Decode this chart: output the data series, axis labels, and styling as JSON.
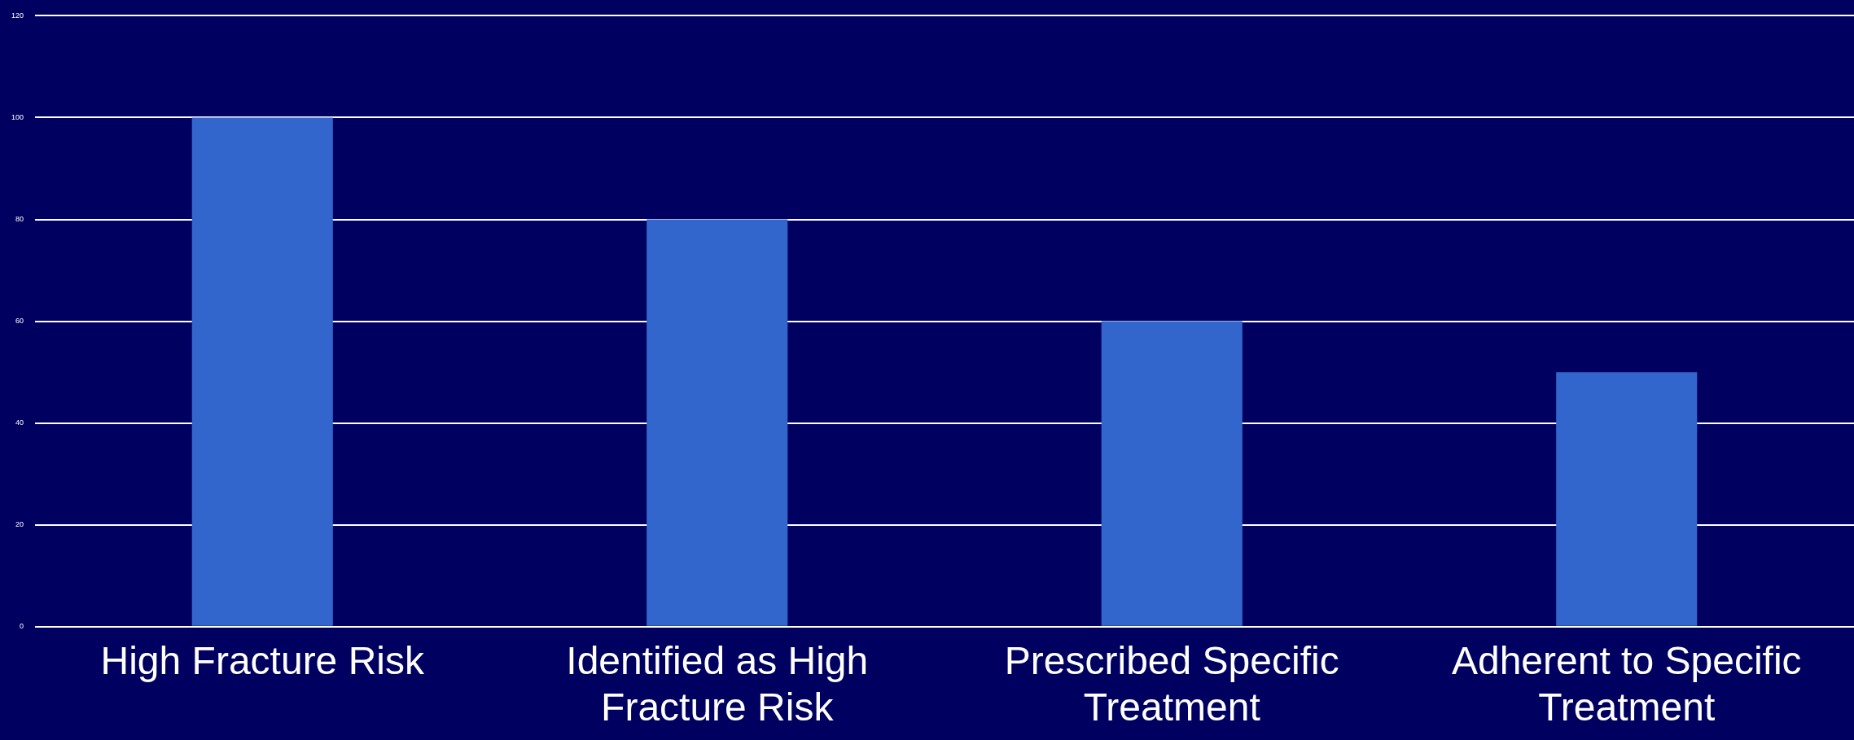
{
  "chart_data": {
    "type": "bar",
    "categories": [
      "High Fracture Risk",
      "Identified as High Fracture Risk",
      "Prescribed Specific Treatment",
      "Adherent to Specific Treatment"
    ],
    "values": [
      100,
      80,
      60,
      50
    ],
    "color": "#3366cc",
    "ylim": [
      0,
      120
    ],
    "yticks": [
      0,
      20,
      40,
      60,
      80,
      100,
      120
    ],
    "grid": "y"
  }
}
